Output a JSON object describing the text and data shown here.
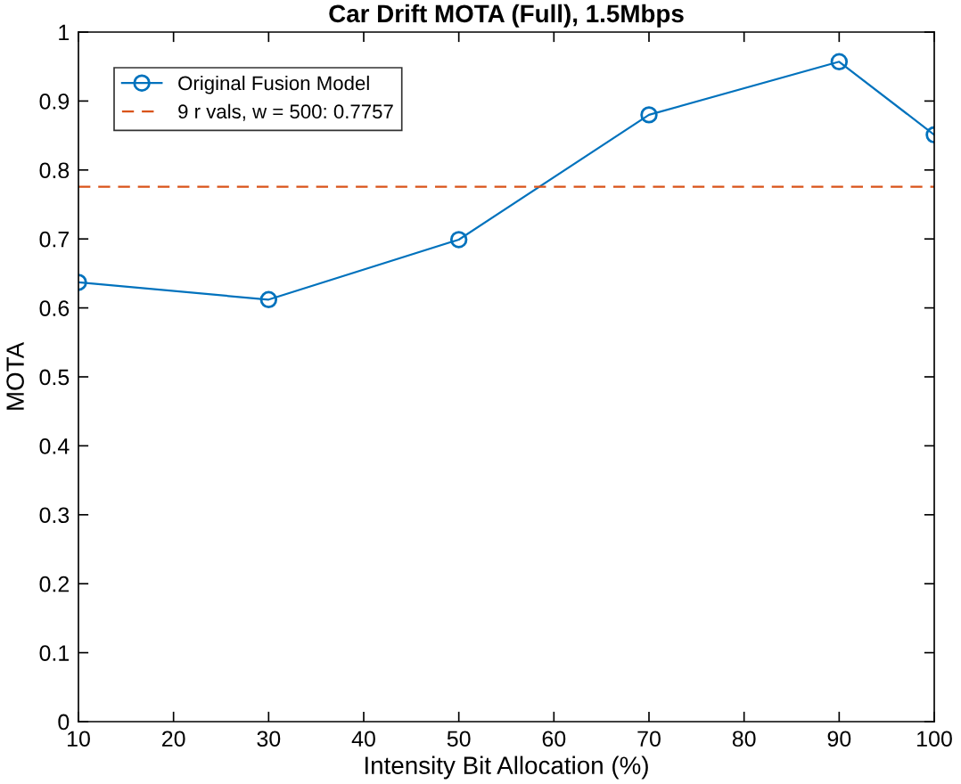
{
  "chart_data": {
    "type": "line",
    "title": "Car Drift MOTA (Full), 1.5Mbps",
    "xlabel": "Intensity Bit Allocation (%)",
    "ylabel": "MOTA",
    "x": [
      10,
      30,
      50,
      70,
      90,
      100
    ],
    "series": [
      {
        "name": "Original Fusion Model",
        "color": "#0072bd",
        "values": [
          0.637,
          0.612,
          0.699,
          0.88,
          0.957,
          0.851
        ]
      }
    ],
    "ref_lines": [
      {
        "axis": "y",
        "value": 0.7757,
        "label": "9 r vals, w = 500: 0.7757",
        "color": "#d95319",
        "line_style": "dashed"
      }
    ],
    "marker": "circle",
    "line_style": "solid",
    "xlim": [
      10,
      100
    ],
    "xticks": [
      10,
      20,
      30,
      40,
      50,
      60,
      70,
      80,
      90,
      100
    ],
    "ylim": [
      0,
      1
    ],
    "yticks": [
      0,
      0.1,
      0.2,
      0.3,
      0.4,
      0.5,
      0.6,
      0.7,
      0.8,
      0.9,
      1
    ],
    "grid": false,
    "legend": "top left"
  }
}
